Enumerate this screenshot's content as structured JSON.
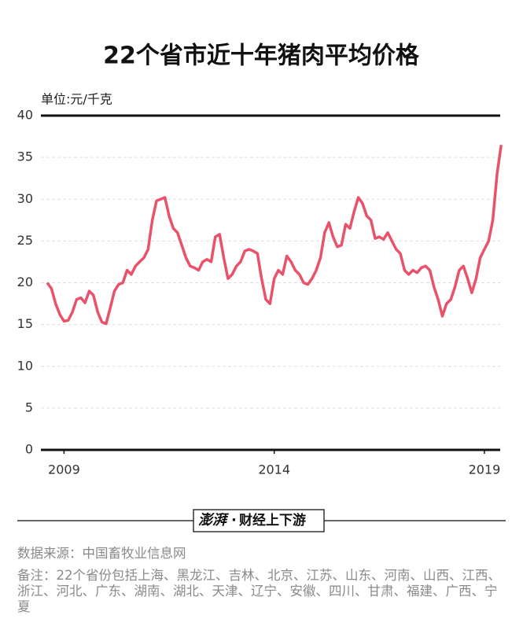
{
  "chart_data": {
    "type": "line",
    "title": "22个省市近十年猪肉平均价格",
    "y_label": "单位:元/千克",
    "x": [
      2008.6,
      2008.7,
      2008.8,
      2008.9,
      2009.0,
      2009.1,
      2009.2,
      2009.3,
      2009.4,
      2009.5,
      2009.6,
      2009.7,
      2009.8,
      2009.9,
      2010.0,
      2010.1,
      2010.2,
      2010.3,
      2010.4,
      2010.5,
      2010.6,
      2010.7,
      2010.8,
      2010.9,
      2011.0,
      2011.1,
      2011.2,
      2011.3,
      2011.4,
      2011.5,
      2011.6,
      2011.7,
      2011.8,
      2011.9,
      2012.0,
      2012.1,
      2012.2,
      2012.3,
      2012.4,
      2012.5,
      2012.6,
      2012.7,
      2012.8,
      2012.9,
      2013.0,
      2013.1,
      2013.2,
      2013.3,
      2013.4,
      2013.5,
      2013.6,
      2013.7,
      2013.8,
      2013.9,
      2014.0,
      2014.1,
      2014.2,
      2014.3,
      2014.4,
      2014.5,
      2014.6,
      2014.7,
      2014.8,
      2014.9,
      2015.0,
      2015.1,
      2015.2,
      2015.3,
      2015.4,
      2015.5,
      2015.6,
      2015.7,
      2015.8,
      2015.9,
      2016.0,
      2016.1,
      2016.2,
      2016.3,
      2016.4,
      2016.5,
      2016.6,
      2016.7,
      2016.8,
      2016.9,
      2017.0,
      2017.1,
      2017.2,
      2017.3,
      2017.4,
      2017.5,
      2017.6,
      2017.7,
      2017.8,
      2017.9,
      2018.0,
      2018.1,
      2018.2,
      2018.3,
      2018.4,
      2018.5,
      2018.6,
      2018.7,
      2018.8,
      2018.9,
      2019.0,
      2019.1,
      2019.2,
      2019.3,
      2019.4
    ],
    "series": [
      {
        "name": "猪肉平均价格",
        "color": "#e8526a",
        "values": [
          20.0,
          19.3,
          17.5,
          16.2,
          15.4,
          15.5,
          16.5,
          18.0,
          18.2,
          17.6,
          19.0,
          18.5,
          16.5,
          15.3,
          15.1,
          17.0,
          19.0,
          19.8,
          20.0,
          21.5,
          21.0,
          22.0,
          22.5,
          23.0,
          24.0,
          27.5,
          29.8,
          30.0,
          30.2,
          28.0,
          26.5,
          26.0,
          24.5,
          23.0,
          22.0,
          21.8,
          21.5,
          22.5,
          22.8,
          22.5,
          25.5,
          25.8,
          23.0,
          20.5,
          21.0,
          22.0,
          22.5,
          23.8,
          24.0,
          23.8,
          23.5,
          20.5,
          18.0,
          17.5,
          20.5,
          21.5,
          21.0,
          23.2,
          22.5,
          21.5,
          21.0,
          20.0,
          19.8,
          20.5,
          21.5,
          23.0,
          26.0,
          27.2,
          25.5,
          24.3,
          24.5,
          27.0,
          26.5,
          28.5,
          30.2,
          29.5,
          28.0,
          27.5,
          25.3,
          25.5,
          25.2,
          26.0,
          25.0,
          24.0,
          23.5,
          21.5,
          21.0,
          21.5,
          21.2,
          21.8,
          22.0,
          21.5,
          19.5,
          18.0,
          16.0,
          17.5,
          18.0,
          19.5,
          21.5,
          22.0,
          20.5,
          18.8,
          20.5,
          23.0,
          24.0,
          25.0,
          27.5,
          33.0,
          36.5
        ]
      }
    ],
    "xlim": [
      2008.45,
      2019.45
    ],
    "xticks": [
      2009,
      2014,
      2019
    ],
    "ylim": [
      0,
      40
    ],
    "yticks": [
      0,
      5,
      10,
      15,
      20,
      25,
      30,
      35,
      40
    ],
    "grid": true,
    "logo": "澎湃",
    "logo_sub": "财经上下游",
    "source": "数据来源：中国畜牧业信息网",
    "note": "备注：22个省份包括上海、黑龙江、吉林、北京、江苏、山东、河南、山西、江西、浙江、河北、广东、湖南、湖北、天津、辽宁、安徽、四川、甘肃、福建、广西、宁夏"
  }
}
